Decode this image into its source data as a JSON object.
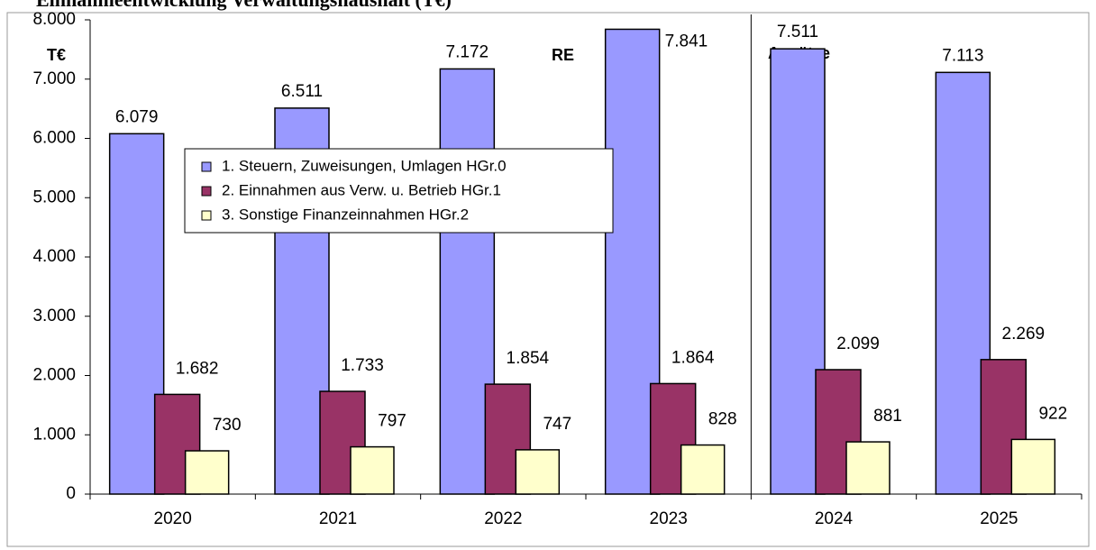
{
  "chart_data": {
    "type": "bar",
    "title": "Einnahmeentwicklung Verwaltungshaushalt (T€)",
    "unit_label": "T€",
    "annotations": [
      "RE",
      "Ansätze"
    ],
    "categories": [
      "2020",
      "2021",
      "2022",
      "2023",
      "2024",
      "2025"
    ],
    "series": [
      {
        "name": "1. Steuern, Zuweisungen, Umlagen HGr.0",
        "color": "#9999ff",
        "values": [
          6079,
          6511,
          7172,
          7841,
          7511,
          7113
        ],
        "value_labels": [
          "6.079",
          "6.511",
          "7.172",
          "7.841",
          "7.511",
          "7.113"
        ]
      },
      {
        "name": "2. Einnahmen aus Verw. u. Betrieb HGr.1",
        "color": "#993366",
        "values": [
          1682,
          1733,
          1854,
          1864,
          2099,
          2269
        ],
        "value_labels": [
          "1.682",
          "1.733",
          "1.854",
          "1.864",
          "2.099",
          "2.269"
        ]
      },
      {
        "name": "3. Sonstige Finanzeinnahmen HGr.2",
        "color": "#ffffcc",
        "values": [
          730,
          797,
          747,
          828,
          881,
          922
        ]
      }
    ],
    "ylim": [
      0,
      8000
    ],
    "yticks": [
      0,
      {
        "value": 1000,
        "label": "1.000"
      },
      {
        "value": 2000,
        "label": "2.000"
      },
      {
        "value": 3000,
        "label": "3.000"
      },
      {
        "value": 4000,
        "label": "4.000"
      },
      {
        "value": 5000,
        "label": "5.000"
      },
      {
        "value": 6000,
        "label": "6.000"
      },
      {
        "value": 7000,
        "label": "7.000"
      },
      {
        "value": 8000,
        "label": "8.000"
      }
    ]
  }
}
